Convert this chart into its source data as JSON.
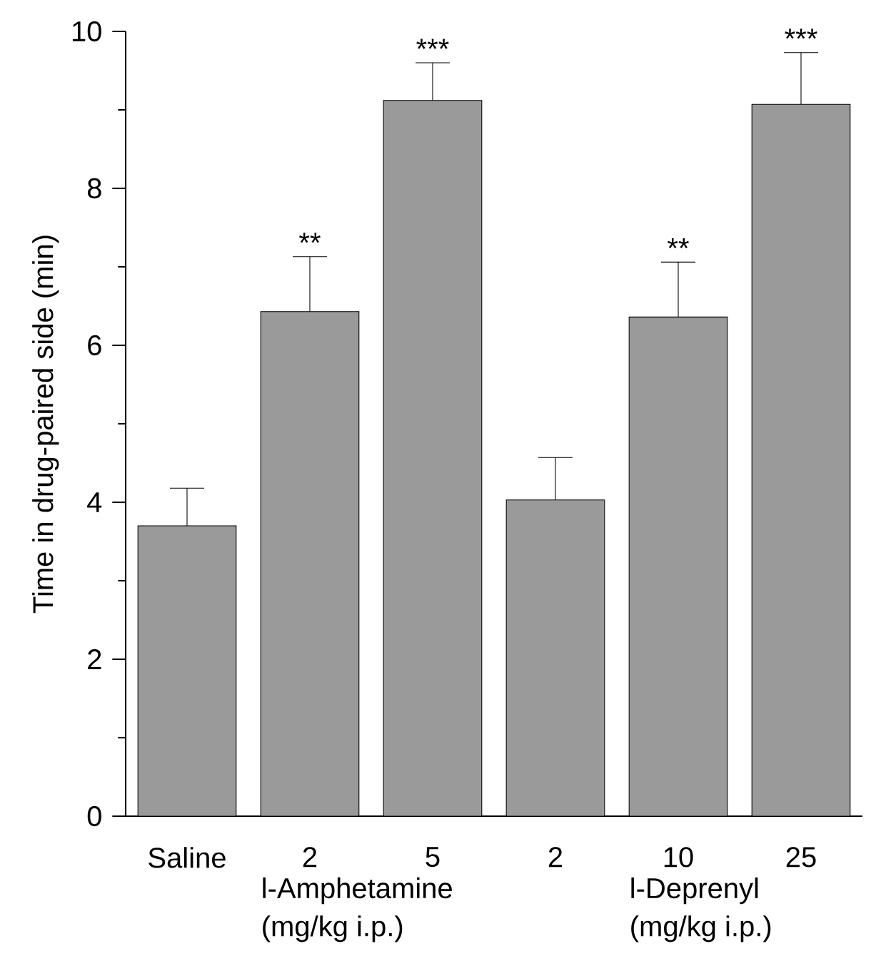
{
  "chart_data": {
    "type": "bar",
    "ylabel": "Time in drug-paired side (min)",
    "categories": [
      "Saline",
      "2",
      "5",
      "2",
      "10",
      "25"
    ],
    "values": [
      3.7,
      6.43,
      9.12,
      4.03,
      6.36,
      9.07
    ],
    "errors": [
      0.48,
      0.7,
      0.48,
      0.54,
      0.7,
      0.66
    ],
    "value_labels": [
      null,
      "**",
      "***",
      null,
      "**",
      "***"
    ],
    "color": "#9a9a9a",
    "ylim": [
      0,
      10
    ],
    "yticks": [
      0,
      2,
      4,
      6,
      8,
      10
    ],
    "annotations": [
      "l-Amphetamine",
      "(mg/kg i.p.)",
      "l-Deprenyl",
      "(mg/kg i.p.)"
    ],
    "grid": false
  }
}
